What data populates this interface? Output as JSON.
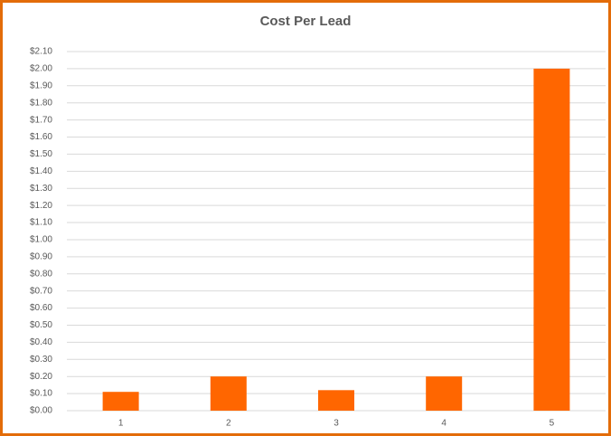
{
  "chart_data": {
    "type": "bar",
    "title": "Cost Per Lead",
    "categories": [
      "1",
      "2",
      "3",
      "4",
      "5"
    ],
    "values": [
      0.11,
      0.2,
      0.12,
      0.2,
      2.0
    ],
    "color": "#ff6600",
    "ylim": [
      0,
      2.1
    ],
    "yticks": [
      {
        "value": 0,
        "label": "$0.00"
      },
      {
        "value": 0.1,
        "label": "$0.10"
      },
      {
        "value": 0.2,
        "label": "$0.20"
      },
      {
        "value": 0.3,
        "label": "$0.30"
      },
      {
        "value": 0.4,
        "label": "$0.40"
      },
      {
        "value": 0.5,
        "label": "$0.50"
      },
      {
        "value": 0.6,
        "label": "$0.60"
      },
      {
        "value": 0.7,
        "label": "$0.70"
      },
      {
        "value": 0.8,
        "label": "$0.80"
      },
      {
        "value": 0.9,
        "label": "$0.90"
      },
      {
        "value": 1.0,
        "label": "$1.00"
      },
      {
        "value": 1.1,
        "label": "$1.10"
      },
      {
        "value": 1.2,
        "label": "$1.20"
      },
      {
        "value": 1.3,
        "label": "$1.30"
      },
      {
        "value": 1.4,
        "label": "$1.40"
      },
      {
        "value": 1.5,
        "label": "$1.50"
      },
      {
        "value": 1.6,
        "label": "$1.60"
      },
      {
        "value": 1.7,
        "label": "$1.70"
      },
      {
        "value": 1.8,
        "label": "$1.80"
      },
      {
        "value": 1.9,
        "label": "$1.90"
      },
      {
        "value": 2.0,
        "label": "$2.00"
      },
      {
        "value": 2.1,
        "label": "$2.10"
      }
    ],
    "grid": true
  }
}
